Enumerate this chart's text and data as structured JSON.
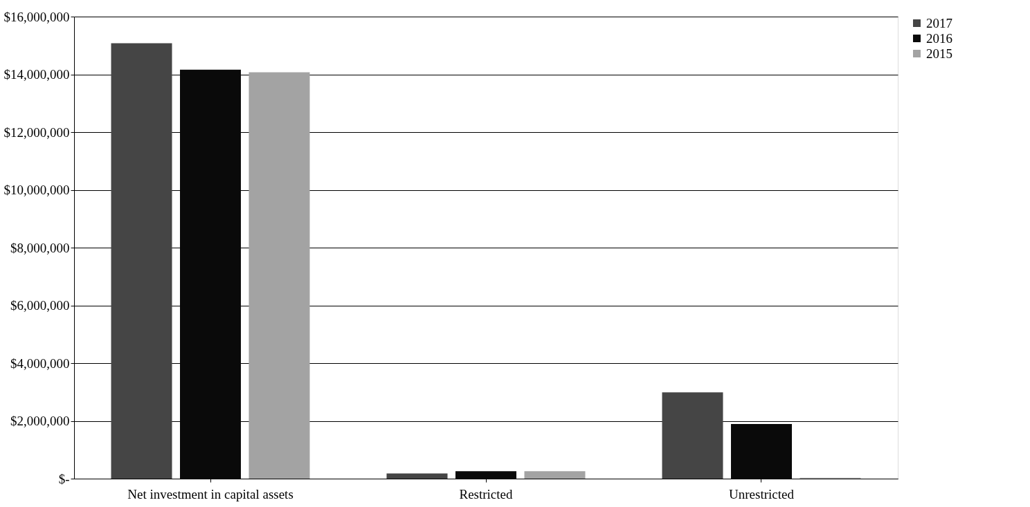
{
  "chart_data": {
    "type": "bar",
    "categories": [
      "Net investment in capital assets",
      "Restricted",
      "Unrestricted"
    ],
    "series": [
      {
        "name": "2017",
        "color": "#454545",
        "values": [
          15080000,
          180000,
          2990000
        ]
      },
      {
        "name": "2016",
        "color": "#0a0a0a",
        "values": [
          14160000,
          260000,
          1890000
        ]
      },
      {
        "name": "2015",
        "color": "#a3a3a3",
        "values": [
          14070000,
          260000,
          30000
        ]
      }
    ],
    "ylim": [
      0,
      16000000
    ],
    "yticks": [
      {
        "value": 0,
        "label": "$-"
      },
      {
        "value": 2000000,
        "label": "$2,000,000"
      },
      {
        "value": 4000000,
        "label": "$4,000,000"
      },
      {
        "value": 6000000,
        "label": "$6,000,000"
      },
      {
        "value": 8000000,
        "label": "$8,000,000"
      },
      {
        "value": 10000000,
        "label": "$10,000,000"
      },
      {
        "value": 12000000,
        "label": "$12,000,000"
      },
      {
        "value": 14000000,
        "label": "$14,000,000"
      },
      {
        "value": 16000000,
        "label": "$16,000,000"
      }
    ],
    "grid": "y",
    "legend": "right"
  }
}
